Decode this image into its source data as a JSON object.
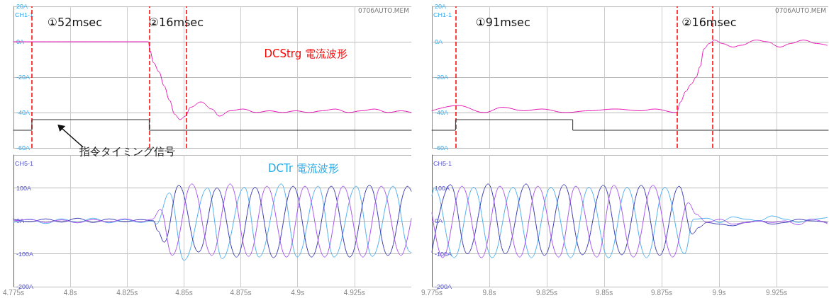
{
  "chart_data": [
    {
      "type": "line",
      "marker": "none",
      "grid": true,
      "tick_labels": "y",
      "ylabel": "CH1-1",
      "xlim": [
        4.775,
        4.95
      ],
      "xticks": [
        4.775,
        4.8,
        4.825,
        4.85,
        4.875,
        4.9,
        4.925
      ],
      "ylim": [
        -60,
        20
      ],
      "yticks": [
        {
          "value": 20,
          "label": "20A"
        },
        {
          "value": 0,
          "label": "0A"
        },
        {
          "value": -20,
          "label": "-20A"
        },
        {
          "value": -40,
          "label": "-40A"
        },
        {
          "value": -60,
          "label": "-60A"
        }
      ],
      "series": [
        {
          "color": "#333333",
          "x": [
            4.775,
            4.7831,
            4.7831,
            4.8347,
            4.8347,
            4.95
          ],
          "values": [
            -50,
            -50,
            -44,
            -44,
            -50,
            -50
          ]
        },
        {
          "color": "#e619b4",
          "x": [
            4.775,
            4.8031,
            4.8344,
            4.835,
            4.8367,
            4.839,
            4.8413,
            4.8436,
            4.8459,
            4.8483,
            4.8506,
            4.8529,
            4.8575,
            4.8622,
            4.8656,
            4.8703,
            4.876,
            4.8818,
            4.8876,
            4.8934,
            4.8992,
            4.905,
            4.9108,
            4.9166,
            4.9223,
            4.9281,
            4.9339,
            4.9397,
            4.9455,
            4.95
          ],
          "values": [
            0,
            0,
            0,
            -5,
            -12,
            -17,
            -25,
            -33,
            -41,
            -44,
            -42,
            -37,
            -34,
            -38,
            -42,
            -39,
            -38,
            -40,
            -39,
            -40,
            -39,
            -40,
            -39,
            -38,
            -40,
            -39,
            -38,
            -40,
            -39,
            -40
          ]
        }
      ],
      "ref_lines": [
        {
          "axis": "x",
          "value": 4.7831,
          "color": "#ff0000",
          "line_style": "dashed"
        },
        {
          "axis": "x",
          "value": 4.8347,
          "color": "#ff0000",
          "line_style": "dashed"
        },
        {
          "axis": "x",
          "value": 4.851,
          "color": "#ff0000",
          "line_style": "dashed"
        }
      ],
      "annotations": [
        "①52msec",
        "②16msec",
        "DCStrg 電流波形",
        {
          "text": "指令タイミング信号",
          "x": 4.7938,
          "y": -46
        },
        "0706AUTO.MEM"
      ]
    },
    {
      "type": "line",
      "marker": "none",
      "grid": true,
      "tick_labels": "y",
      "ylabel": "CH1-1",
      "xlim": [
        9.775,
        9.9475
      ],
      "xticks": [
        9.775,
        9.8,
        9.825,
        9.85,
        9.875,
        9.9,
        9.925
      ],
      "ylim": [
        -60,
        20
      ],
      "yticks": [
        {
          "value": 20,
          "label": "20A"
        },
        {
          "value": 0,
          "label": "0A"
        },
        {
          "value": -20,
          "label": "-20A"
        },
        {
          "value": -40,
          "label": "-40A"
        },
        {
          "value": -60,
          "label": "-60A"
        }
      ],
      "series": [
        {
          "color": "#333333",
          "x": [
            9.775,
            9.7853,
            9.7853,
            9.8363,
            9.8363,
            9.9475
          ],
          "values": [
            -50,
            -50,
            -44,
            -44,
            -50,
            -50
          ]
        },
        {
          "color": "#e619b4",
          "x": [
            9.775,
            9.7864,
            9.7978,
            9.8058,
            9.8149,
            9.8228,
            9.8331,
            9.8433,
            9.8547,
            9.8661,
            9.8718,
            9.8815,
            9.8832,
            9.8855,
            9.8878,
            9.89,
            9.8917,
            9.8934,
            9.8957,
            9.898,
            9.9014,
            9.906,
            9.9094,
            9.9162,
            9.9208,
            9.9265,
            9.931,
            9.9367,
            9.9424,
            9.947
          ],
          "values": [
            -39,
            -36,
            -40,
            -37,
            -39,
            -38,
            -40,
            -39,
            -38,
            -39,
            -38,
            -40,
            -34,
            -28,
            -24,
            -20,
            -14,
            -4,
            -1,
            1,
            -1,
            -3,
            -2,
            1,
            0,
            -3,
            -1,
            1,
            -1,
            -2
          ]
        }
      ],
      "ref_lines": [
        {
          "axis": "x",
          "value": 9.7853,
          "color": "#ff0000",
          "line_style": "dashed"
        },
        {
          "axis": "x",
          "value": 9.8818,
          "color": "#ff0000",
          "line_style": "dashed"
        },
        {
          "axis": "x",
          "value": 9.8972,
          "color": "#ff0000",
          "line_style": "dashed"
        }
      ],
      "annotations": [
        "①91msec",
        "②16msec",
        "0706AUTO.MEM"
      ]
    },
    {
      "type": "line",
      "marker": "none",
      "grid": true,
      "ylabel": "CH5-1",
      "xlim": [
        4.775,
        4.95
      ],
      "xticks": [
        {
          "value": 4.775,
          "label": "4.775s"
        },
        {
          "value": 4.8,
          "label": "4.8s"
        },
        {
          "value": 4.825,
          "label": "4.825s"
        },
        {
          "value": 4.85,
          "label": "4.85s"
        },
        {
          "value": 4.875,
          "label": "4.875s"
        },
        {
          "value": 4.9,
          "label": "4.9s"
        },
        {
          "value": 4.925,
          "label": "4.925s"
        }
      ],
      "ylim": [
        -200,
        200
      ],
      "yticks": [
        {
          "value": 200,
          "label": null
        },
        {
          "value": 100,
          "label": "100A"
        },
        {
          "value": 0,
          "label": "0A"
        },
        {
          "value": -100,
          "label": "-100A"
        },
        {
          "value": -200,
          "label": "-200A"
        }
      ],
      "series": [
        {
          "color": "#4fb0f0",
          "x": [
            4.775,
            4.7823,
            4.7892,
            4.7962,
            4.8031,
            4.8101,
            4.817,
            4.824,
            4.8309,
            4.8361,
            4.8378,
            4.8436,
            4.85,
            4.8604,
            4.8668,
            4.8766,
            4.883,
            4.8928,
            4.8998,
            4.909,
            4.916,
            4.9258,
            4.9328,
            4.942,
            4.9495,
            4.95
          ],
          "values": [
            -5,
            5,
            -8,
            6,
            -5,
            8,
            -6,
            4,
            -5,
            0,
            -10,
            85,
            -120,
            100,
            -115,
            102,
            -110,
            112,
            -110,
            105,
            -110,
            105,
            -108,
            105,
            -95,
            -96
          ]
        },
        {
          "color": "#3c3cb4",
          "x": [
            4.775,
            4.7823,
            4.7892,
            4.7962,
            4.8031,
            4.8101,
            4.817,
            4.824,
            4.8309,
            4.8367,
            4.8384,
            4.8413,
            4.8477,
            4.8564,
            4.8645,
            4.8731,
            4.8813,
            4.8894,
            4.898,
            4.9061,
            4.9148,
            4.9229,
            4.9316,
            4.9397,
            4.9484,
            4.95
          ],
          "values": [
            5,
            -3,
            6,
            -4,
            8,
            -5,
            6,
            -3,
            4,
            0,
            -30,
            -65,
            108,
            -95,
            100,
            -110,
            102,
            -112,
            105,
            -110,
            105,
            -110,
            108,
            -105,
            105,
            90
          ]
        },
        {
          "color": "#a855f0",
          "x": [
            4.775,
            4.7823,
            4.7892,
            4.7962,
            4.8031,
            4.8101,
            4.817,
            4.824,
            4.8309,
            4.8361,
            4.8396,
            4.8448,
            4.8535,
            4.8622,
            4.8703,
            4.8784,
            4.8865,
            4.8951,
            4.9032,
            4.9119,
            4.92,
            4.9287,
            4.9368,
            4.9455,
            4.95
          ],
          "values": [
            0,
            4,
            -5,
            3,
            -6,
            4,
            -4,
            6,
            -3,
            5,
            35,
            -105,
            112,
            -105,
            112,
            -108,
            105,
            -110,
            105,
            -110,
            105,
            -110,
            105,
            -105,
            7
          ]
        }
      ],
      "annotations": [
        "DCTr 電流波形"
      ]
    },
    {
      "type": "line",
      "marker": "none",
      "grid": true,
      "ylabel": "CH5-1",
      "xlim": [
        9.775,
        9.9475
      ],
      "xticks": [
        {
          "value": 9.775,
          "label": "9.775s"
        },
        {
          "value": 9.8,
          "label": "9.8s"
        },
        {
          "value": 9.825,
          "label": "9.825s"
        },
        {
          "value": 9.85,
          "label": "9.85s"
        },
        {
          "value": 9.875,
          "label": "9.875s"
        },
        {
          "value": 9.9,
          "label": "9.9s"
        },
        {
          "value": 9.925,
          "label": "9.925s"
        }
      ],
      "ylim": [
        -200,
        200
      ],
      "yticks": [
        {
          "value": 200,
          "label": null
        },
        {
          "value": 100,
          "label": "100A"
        },
        {
          "value": 0,
          "label": "0A"
        },
        {
          "value": -100,
          "label": "-100A"
        },
        {
          "value": -200,
          "label": "-200A"
        }
      ],
      "series": [
        {
          "color": "#4fb0f0",
          "x": [
            9.775,
            9.7761,
            9.7847,
            9.7932,
            9.8012,
            9.8103,
            9.8183,
            9.8268,
            9.8354,
            9.8433,
            9.8519,
            9.8599,
            9.8684,
            9.8764,
            9.8849,
            9.8889,
            9.8946,
            9.9003,
            9.906,
            9.9117,
            9.9174,
            9.9231,
            9.9288,
            9.9345,
            9.9401,
            9.947
          ],
          "values": [
            76,
            100,
            -112,
            102,
            -112,
            102,
            -112,
            102,
            -112,
            102,
            -112,
            102,
            -112,
            102,
            -100,
            5,
            8,
            -5,
            12,
            5,
            0,
            15,
            5,
            -5,
            5,
            10
          ]
        },
        {
          "color": "#3c3cb4",
          "x": [
            9.775,
            9.783,
            9.7904,
            9.7995,
            9.8069,
            9.816,
            9.824,
            9.8325,
            9.8405,
            9.8496,
            9.8576,
            9.8661,
            9.8741,
            9.8826,
            9.8883,
            9.8912,
            9.8946,
            9.9003,
            9.906,
            9.9117,
            9.9174,
            9.9231,
            9.9288,
            9.9345,
            9.9401,
            9.947
          ],
          "values": [
            -95,
            110,
            -100,
            112,
            -100,
            112,
            -105,
            110,
            -103,
            108,
            -103,
            108,
            -105,
            105,
            -40,
            -20,
            -5,
            -10,
            -15,
            -5,
            0,
            -10,
            -5,
            5,
            0,
            -5
          ]
        },
        {
          "color": "#a855f0",
          "x": [
            9.775,
            9.7796,
            9.7881,
            9.7966,
            9.8046,
            9.8132,
            9.8211,
            9.8302,
            9.8376,
            9.8468,
            9.8542,
            9.8627,
            9.8712,
            9.8798,
            9.8866,
            9.89,
            9.8946,
            9.9003,
            9.906,
            9.9117,
            9.9174,
            9.9231,
            9.9288,
            9.9345,
            9.9401,
            9.947
          ],
          "values": [
            25,
            -112,
            105,
            -112,
            105,
            -110,
            105,
            -110,
            105,
            -110,
            108,
            -110,
            108,
            -110,
            55,
            20,
            -5,
            5,
            -10,
            -5,
            0,
            -5,
            0,
            -12,
            5,
            -8
          ]
        }
      ]
    }
  ]
}
